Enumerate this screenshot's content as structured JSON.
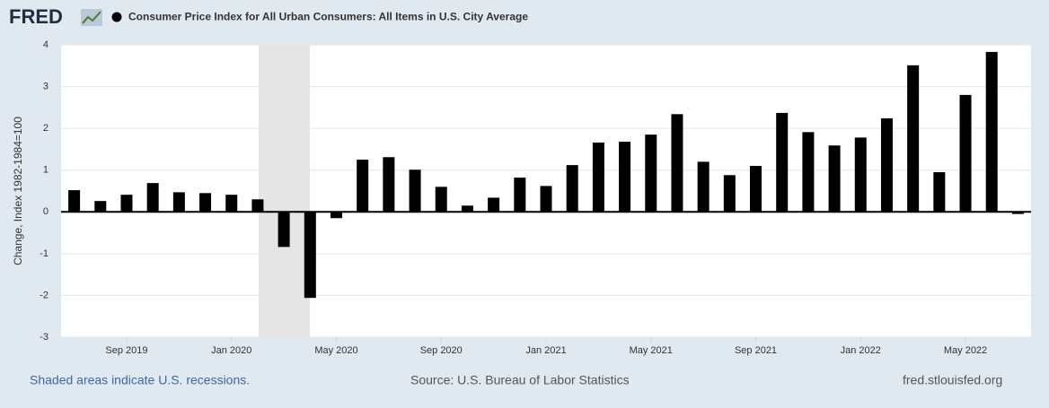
{
  "header": {
    "logo": "FRED"
  },
  "chart_data": {
    "type": "bar",
    "y_label": "Change, Index 1982-1984=100",
    "categories": [
      null,
      null,
      "Sep 2019",
      null,
      null,
      null,
      "Jan 2020",
      null,
      null,
      null,
      "May 2020",
      null,
      null,
      null,
      "Sep 2020",
      null,
      null,
      null,
      "Jan 2021",
      null,
      null,
      null,
      "May 2021",
      null,
      null,
      null,
      "Sep 2021",
      null,
      null,
      null,
      "Jan 2022",
      null,
      null,
      null,
      "May 2022",
      null,
      null
    ],
    "series": [
      {
        "name": "Consumer Price Index for All Urban Consumers: All Items in U.S. City Average",
        "color": "#000000",
        "values": [
          0.52,
          0.26,
          0.41,
          0.69,
          0.47,
          0.45,
          0.41,
          0.3,
          -0.84,
          -2.06,
          -0.15,
          1.25,
          1.31,
          1.01,
          0.6,
          0.15,
          0.34,
          0.82,
          0.62,
          1.12,
          1.66,
          1.68,
          1.85,
          2.34,
          1.2,
          0.88,
          1.1,
          2.37,
          1.91,
          1.59,
          1.78,
          2.24,
          3.51,
          0.95,
          2.8,
          3.83,
          -0.05
        ]
      }
    ],
    "ylim": [
      -3,
      4
    ],
    "yticks": [
      -3,
      -2,
      -1,
      0,
      1,
      2,
      3,
      4
    ],
    "grid": true
  },
  "footer": {
    "recession_note": "Shaded areas indicate U.S. recessions.",
    "source": "Source: U.S. Bureau of Labor Statistics",
    "site": "fred.stlouisfed.org"
  }
}
